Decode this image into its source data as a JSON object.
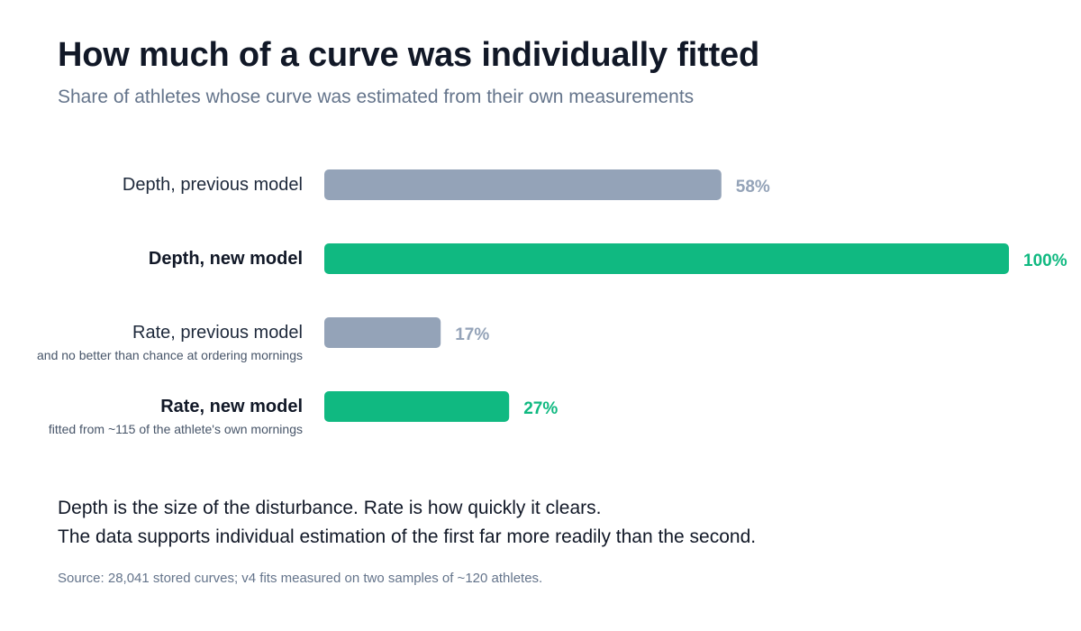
{
  "header": {
    "title": "How much of a curve was individually fitted",
    "subtitle": "Share of athletes whose curve was estimated from their own measurements"
  },
  "chart_data": {
    "type": "bar",
    "orientation": "horizontal",
    "categories": [
      "Depth, previous model",
      "Depth, new model",
      "Rate, previous model",
      "Rate, new model"
    ],
    "sublabels": [
      "",
      "",
      "and no better than chance at ordering mornings",
      "fitted from ~115 of the athlete's own mornings"
    ],
    "values": [
      58,
      100,
      17,
      27
    ],
    "value_labels": [
      "58%",
      "100%",
      "17%",
      "27%"
    ],
    "highlighted": [
      false,
      true,
      false,
      true
    ],
    "xlim": [
      0,
      100
    ],
    "grid": false,
    "colors": {
      "previous": "#94a3b8",
      "new": "#10b981",
      "label_strong": "#111827",
      "label_normal": "#1e293b",
      "sublabel": "#475569"
    }
  },
  "notes": {
    "line1": "Depth is the size of the disturbance. Rate is how quickly it clears.",
    "line2": "The data supports individual estimation of the first far more readily than the second."
  },
  "source": "Source: 28,041 stored curves; v4 fits measured on two samples of ~120 athletes."
}
